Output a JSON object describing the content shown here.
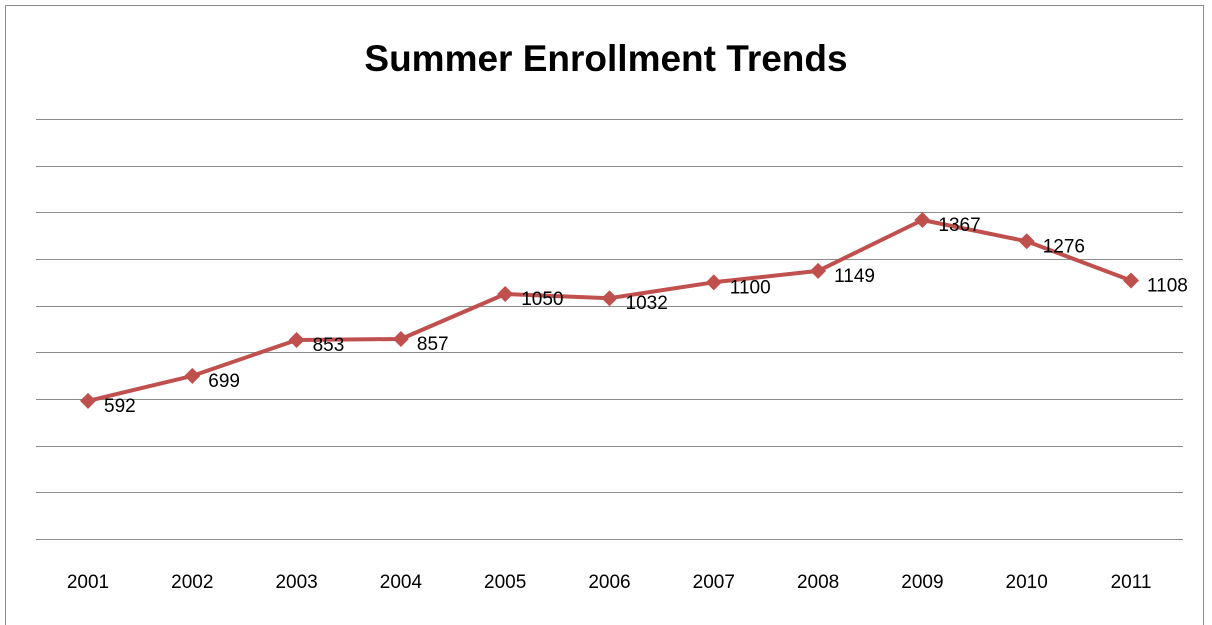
{
  "chart_data": {
    "type": "line",
    "title": "Summer Enrollment Trends",
    "xlabel": "",
    "ylabel": "",
    "categories": [
      "2001",
      "2002",
      "2003",
      "2004",
      "2005",
      "2006",
      "2007",
      "2008",
      "2009",
      "2010",
      "2011"
    ],
    "series": [
      {
        "values": [
          592,
          699,
          853,
          857,
          1050,
          1032,
          1100,
          1149,
          1367,
          1276,
          1108
        ]
      }
    ],
    "ylim": [
      0,
      1800
    ],
    "y_gridline_step": 200,
    "y_tick_labels_shown": false,
    "grid": true,
    "legend": "none",
    "data_labels": true,
    "line_color": "#c0504d",
    "gridline_color": "#8c8c8c"
  }
}
